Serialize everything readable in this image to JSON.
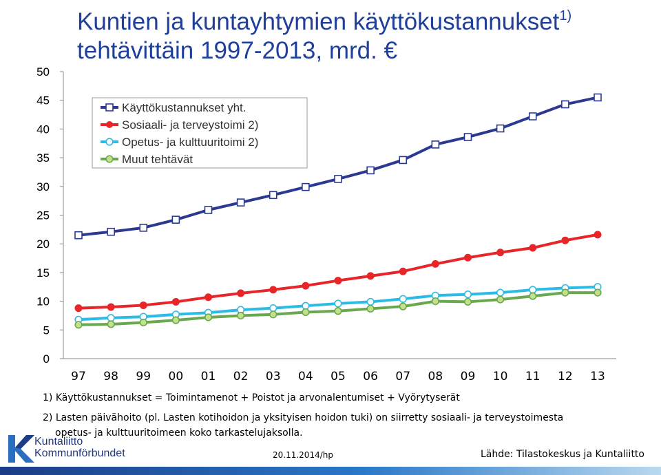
{
  "title": {
    "line1": "Kuntien ja kuntayhtymien käyttökustannukset",
    "line1_sup": "1)",
    "line2": "tehtävittäin 1997-2013, mrd. €"
  },
  "chart_data": {
    "type": "line",
    "categories": [
      "97",
      "98",
      "99",
      "00",
      "01",
      "02",
      "03",
      "04",
      "05",
      "06",
      "07",
      "08",
      "09",
      "10",
      "11",
      "12",
      "13"
    ],
    "ylim": [
      0,
      50
    ],
    "yticks": [
      0,
      5,
      10,
      15,
      20,
      25,
      30,
      35,
      40,
      45,
      50
    ],
    "grid": false,
    "legend_position": "top-left",
    "series": [
      {
        "name": "Käyttökustannukset yht.",
        "color": "#2b3990",
        "marker": "square",
        "values": [
          21.5,
          22.1,
          22.8,
          24.2,
          25.9,
          27.2,
          28.5,
          29.9,
          31.3,
          32.8,
          34.6,
          37.3,
          38.6,
          40.1,
          42.2,
          44.3,
          45.5
        ]
      },
      {
        "name": "Sosiaali- ja terveystoimi 2)",
        "color": "#e8262a",
        "marker": "circle",
        "values": [
          8.8,
          9.0,
          9.3,
          9.9,
          10.7,
          11.4,
          12.0,
          12.7,
          13.6,
          14.4,
          15.2,
          16.5,
          17.6,
          18.5,
          19.3,
          20.6,
          21.6
        ]
      },
      {
        "name": "Opetus- ja kulttuuritoimi 2)",
        "color": "#2cbbe4",
        "marker": "circle",
        "values": [
          6.8,
          7.1,
          7.3,
          7.7,
          8.0,
          8.5,
          8.8,
          9.2,
          9.6,
          9.9,
          10.4,
          11.0,
          11.2,
          11.5,
          12.0,
          12.3,
          12.5
        ]
      },
      {
        "name": "Muut tehtävät",
        "color": "#6aa84f",
        "marker": "circle",
        "values": [
          5.9,
          6.0,
          6.3,
          6.7,
          7.2,
          7.5,
          7.7,
          8.1,
          8.3,
          8.7,
          9.1,
          10.0,
          9.9,
          10.3,
          10.9,
          11.5,
          11.5
        ]
      }
    ]
  },
  "footnotes": {
    "note1": "1) Käyttökustannukset = Toimintamenot + Poistot ja arvonalentumiset + Vyörytyserät",
    "note2_line1": "2) Lasten päivähoito (pl. Lasten kotihoidon ja yksityisen hoidon tuki) on siirretty sosiaali- ja terveystoimesta",
    "note2_line2": "opetus- ja kulttuuritoimeen koko tarkastelujaksolla."
  },
  "logo": {
    "line1": "Kuntaliitto",
    "line2": "Kommunförbundet",
    "icon": "kuntaliitto-logo-icon"
  },
  "date_stamp": "20.11.2014/hp",
  "source": "Lähde: Tilastokeskus ja Kuntaliitto"
}
